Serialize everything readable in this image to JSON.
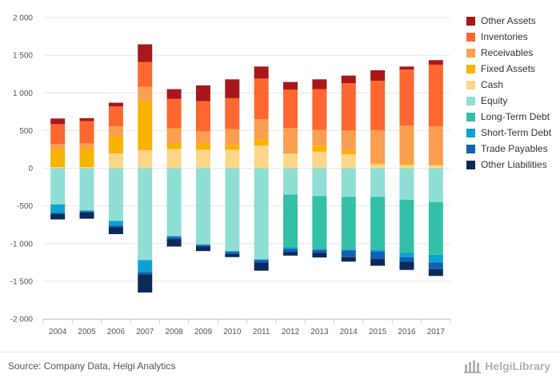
{
  "chart_data": {
    "type": "bar",
    "stacked": true,
    "title": "",
    "xlabel": "",
    "ylabel": "",
    "ylim": [
      -2000,
      2000
    ],
    "y_ticks": [
      2000,
      1500,
      1000,
      500,
      0,
      -500,
      -1000,
      -1500,
      -2000
    ],
    "y_tick_labels": [
      "2 000",
      "1 500",
      "1 000",
      "500",
      "0",
      "-500",
      "-1 000",
      "-1 500",
      "-2 000"
    ],
    "grid": true,
    "legend_position": "right",
    "categories": [
      "2004",
      "2005",
      "2006",
      "2007",
      "2008",
      "2009",
      "2010",
      "2011",
      "2012",
      "2013",
      "2014",
      "2015",
      "2016",
      "2017"
    ],
    "series": [
      {
        "name": "Cash",
        "side": "positive",
        "color": "#fdd68a",
        "values": [
          15,
          15,
          195,
          240,
          255,
          245,
          245,
          300,
          195,
          220,
          185,
          50,
          40,
          35
        ]
      },
      {
        "name": "Fixed Assets",
        "side": "positive",
        "color": "#f9b200",
        "values": [
          240,
          250,
          230,
          660,
          80,
          85,
          65,
          80,
          0,
          80,
          55,
          15,
          15,
          10
        ]
      },
      {
        "name": "Receivables",
        "side": "positive",
        "color": "#fc9e4f",
        "values": [
          65,
          65,
          130,
          180,
          195,
          160,
          210,
          270,
          340,
          210,
          260,
          440,
          510,
          510
        ]
      },
      {
        "name": "Inventories",
        "side": "positive",
        "color": "#fe6730",
        "values": [
          265,
          295,
          265,
          330,
          390,
          400,
          410,
          540,
          510,
          540,
          630,
          655,
          745,
          820
        ]
      },
      {
        "name": "Other Assets",
        "side": "positive",
        "color": "#a8181a",
        "values": [
          75,
          40,
          50,
          235,
          130,
          210,
          250,
          160,
          100,
          130,
          100,
          140,
          40,
          60
        ]
      },
      {
        "name": "Equity",
        "side": "negative",
        "color": "#8fded3",
        "values": [
          480,
          560,
          700,
          1220,
          900,
          1010,
          1100,
          1210,
          350,
          370,
          380,
          380,
          420,
          450
        ]
      },
      {
        "name": "Long-Term Debt",
        "side": "negative",
        "color": "#33c0a7",
        "values": [
          0,
          0,
          0,
          0,
          0,
          0,
          0,
          0,
          700,
          700,
          700,
          700,
          700,
          700
        ]
      },
      {
        "name": "Short-Term Debt",
        "side": "negative",
        "color": "#0ca1d3",
        "values": [
          110,
          10,
          60,
          160,
          10,
          10,
          10,
          10,
          20,
          15,
          10,
          25,
          60,
          100
        ]
      },
      {
        "name": "Trade Payables",
        "side": "negative",
        "color": "#1060b3",
        "values": [
          20,
          15,
          25,
          30,
          30,
          20,
          30,
          30,
          40,
          40,
          90,
          100,
          60,
          90
        ]
      },
      {
        "name": "Other Liabilities",
        "side": "negative",
        "color": "#0b2a58",
        "values": [
          70,
          85,
          90,
          240,
          100,
          60,
          40,
          110,
          50,
          60,
          60,
          90,
          110,
          90
        ]
      }
    ],
    "legend_order": [
      "Other Assets",
      "Inventories",
      "Receivables",
      "Fixed Assets",
      "Cash",
      "Equity",
      "Long-Term Debt",
      "Short-Term Debt",
      "Trade Payables",
      "Other Liabilities"
    ]
  },
  "footer": {
    "source": "Source: Company Data, Helgi Analytics",
    "brand": "HelgiLibrary"
  },
  "colors": {
    "grid": "#e6e6e6",
    "axis": "#cccccc",
    "text": "#555555",
    "brand": "#b0b0b0"
  },
  "icons": {
    "brand": "helgi-library-logo-icon"
  }
}
